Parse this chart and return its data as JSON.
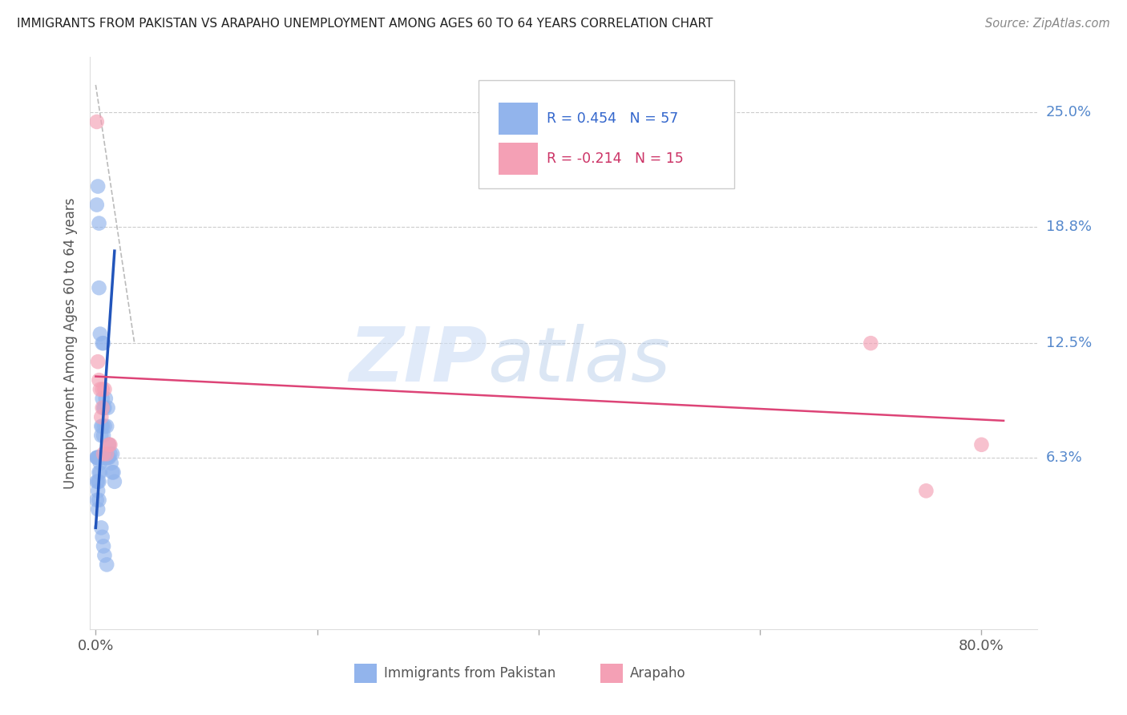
{
  "title": "IMMIGRANTS FROM PAKISTAN VS ARAPAHO UNEMPLOYMENT AMONG AGES 60 TO 64 YEARS CORRELATION CHART",
  "source": "Source: ZipAtlas.com",
  "ylabel": "Unemployment Among Ages 60 to 64 years",
  "ytick_labels": [
    "25.0%",
    "18.8%",
    "12.5%",
    "6.3%"
  ],
  "ytick_values": [
    0.25,
    0.188,
    0.125,
    0.063
  ],
  "ylim": [
    -0.03,
    0.28
  ],
  "xlim": [
    -0.005,
    0.85
  ],
  "blue_color": "#92b4ec",
  "pink_color": "#f4a0b5",
  "blue_line_color": "#2255bb",
  "pink_line_color": "#dd4477",
  "legend_blue_r": "R = 0.454",
  "legend_blue_n": "N = 57",
  "legend_pink_r": "R = -0.214",
  "legend_pink_n": "N = 15",
  "watermark_zip": "ZIP",
  "watermark_atlas": "atlas",
  "blue_scatter_x": [
    0.001,
    0.001,
    0.001,
    0.001,
    0.002,
    0.002,
    0.002,
    0.002,
    0.002,
    0.003,
    0.003,
    0.003,
    0.003,
    0.003,
    0.004,
    0.004,
    0.004,
    0.004,
    0.005,
    0.005,
    0.005,
    0.005,
    0.006,
    0.006,
    0.006,
    0.006,
    0.007,
    0.007,
    0.007,
    0.007,
    0.008,
    0.008,
    0.008,
    0.009,
    0.009,
    0.01,
    0.01,
    0.011,
    0.011,
    0.012,
    0.012,
    0.013,
    0.014,
    0.015,
    0.015,
    0.016,
    0.017,
    0.001,
    0.002,
    0.003,
    0.003,
    0.004,
    0.005,
    0.006,
    0.007,
    0.008,
    0.01
  ],
  "blue_scatter_y": [
    0.063,
    0.063,
    0.05,
    0.04,
    0.063,
    0.063,
    0.05,
    0.045,
    0.035,
    0.063,
    0.063,
    0.055,
    0.05,
    0.04,
    0.063,
    0.063,
    0.06,
    0.055,
    0.063,
    0.063,
    0.075,
    0.08,
    0.063,
    0.08,
    0.095,
    0.125,
    0.063,
    0.075,
    0.09,
    0.125,
    0.063,
    0.08,
    0.09,
    0.063,
    0.095,
    0.063,
    0.08,
    0.063,
    0.09,
    0.063,
    0.07,
    0.065,
    0.06,
    0.055,
    0.065,
    0.055,
    0.05,
    0.2,
    0.21,
    0.19,
    0.155,
    0.13,
    0.025,
    0.02,
    0.015,
    0.01,
    0.005
  ],
  "pink_scatter_x": [
    0.001,
    0.002,
    0.003,
    0.004,
    0.005,
    0.006,
    0.007,
    0.008,
    0.01,
    0.012,
    0.013,
    0.7,
    0.75,
    0.8,
    0.006
  ],
  "pink_scatter_y": [
    0.245,
    0.115,
    0.105,
    0.1,
    0.085,
    0.1,
    0.065,
    0.1,
    0.065,
    0.07,
    0.07,
    0.125,
    0.045,
    0.07,
    0.09
  ],
  "blue_line_x0": 0.0,
  "blue_line_x1": 0.017,
  "blue_line_y0": 0.025,
  "blue_line_y1": 0.175,
  "pink_line_x0": 0.0,
  "pink_line_x1": 0.82,
  "pink_line_y0": 0.107,
  "pink_line_y1": 0.083,
  "trend_dashed_x": [
    0.0,
    0.005,
    0.01,
    0.015,
    0.02,
    0.025,
    0.03,
    0.035
  ],
  "trend_dashed_y": [
    0.265,
    0.245,
    0.225,
    0.205,
    0.185,
    0.165,
    0.145,
    0.125
  ]
}
